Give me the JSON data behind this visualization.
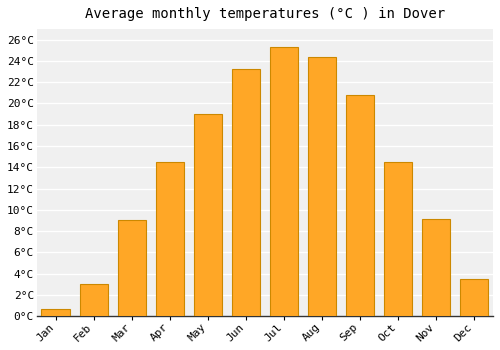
{
  "title": "Average monthly temperatures (°C ) in Dover",
  "months": [
    "Jan",
    "Feb",
    "Mar",
    "Apr",
    "May",
    "Jun",
    "Jul",
    "Aug",
    "Sep",
    "Oct",
    "Nov",
    "Dec"
  ],
  "values": [
    0.7,
    3.0,
    9.0,
    14.5,
    19.0,
    23.2,
    25.3,
    24.4,
    20.8,
    14.5,
    9.1,
    3.5
  ],
  "bar_color": "#FFA726",
  "bar_edge_color": "#CC8800",
  "ylim": [
    0,
    27
  ],
  "yticks": [
    0,
    2,
    4,
    6,
    8,
    10,
    12,
    14,
    16,
    18,
    20,
    22,
    24,
    26
  ],
  "plot_bg_color": "#f0f0f0",
  "outer_bg_color": "#ffffff",
  "grid_color": "#ffffff",
  "title_fontsize": 10,
  "tick_fontsize": 8,
  "font_family": "monospace"
}
